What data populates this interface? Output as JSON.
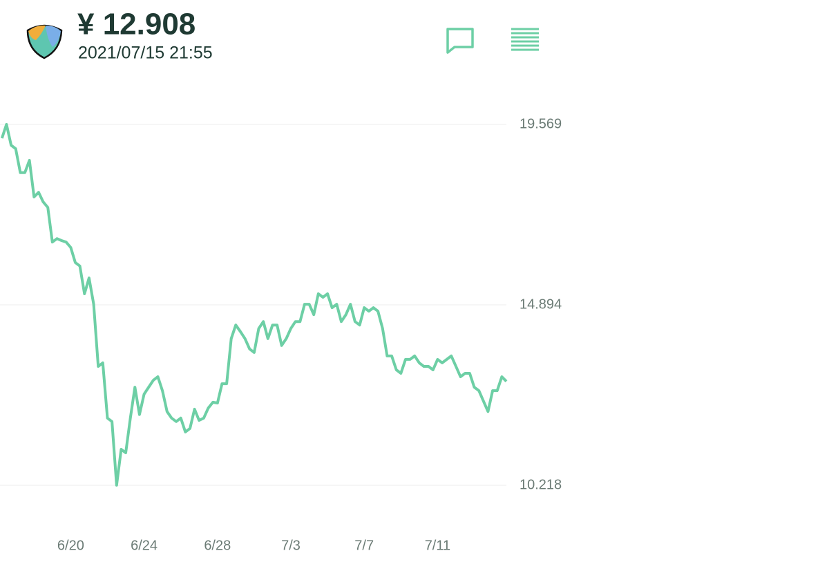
{
  "header": {
    "price": "¥ 12.908",
    "datetime": "2021/07/15 21:55"
  },
  "chart_data": {
    "type": "line",
    "color": "#6dcfa5",
    "grid": true,
    "ylim": [
      10.218,
      19.569
    ],
    "yticks": [
      10.218,
      14.894,
      19.569
    ],
    "categories": [
      null,
      null,
      null,
      null,
      null,
      null,
      null,
      null,
      null,
      null,
      null,
      null,
      null,
      null,
      null,
      "6/20",
      null,
      null,
      null,
      null,
      null,
      null,
      null,
      null,
      null,
      null,
      null,
      null,
      null,
      null,
      null,
      "6/24",
      null,
      null,
      null,
      null,
      null,
      null,
      null,
      null,
      null,
      null,
      null,
      null,
      null,
      null,
      null,
      "6/28",
      null,
      null,
      null,
      null,
      null,
      null,
      null,
      null,
      null,
      null,
      null,
      null,
      null,
      null,
      null,
      "7/3",
      null,
      null,
      null,
      null,
      null,
      null,
      null,
      null,
      null,
      null,
      null,
      null,
      null,
      null,
      null,
      "7/7",
      null,
      null,
      null,
      null,
      null,
      null,
      null,
      null,
      null,
      null,
      null,
      null,
      null,
      null,
      null,
      "7/11",
      null,
      null,
      null,
      null,
      null,
      null,
      null,
      null,
      null,
      null,
      null,
      null,
      null,
      null,
      null
    ],
    "values": [
      19.21,
      19.57,
      19.03,
      18.94,
      18.32,
      18.32,
      18.64,
      17.69,
      17.81,
      17.56,
      17.42,
      16.52,
      16.61,
      16.56,
      16.52,
      16.38,
      15.99,
      15.9,
      15.18,
      15.59,
      14.91,
      13.3,
      13.39,
      11.96,
      11.87,
      10.22,
      11.15,
      11.06,
      11.96,
      12.76,
      12.05,
      12.58,
      12.76,
      12.94,
      13.03,
      12.67,
      12.13,
      11.96,
      11.87,
      11.96,
      11.6,
      11.69,
      12.19,
      11.9,
      11.96,
      12.22,
      12.37,
      12.35,
      12.85,
      12.85,
      14.02,
      14.37,
      14.2,
      14.02,
      13.75,
      13.66,
      14.28,
      14.46,
      14.02,
      14.37,
      14.37,
      13.84,
      14.02,
      14.28,
      14.46,
      14.46,
      14.91,
      14.91,
      14.64,
      15.18,
      15.09,
      15.18,
      14.82,
      14.91,
      14.46,
      14.64,
      14.91,
      14.46,
      14.37,
      14.82,
      14.73,
      14.82,
      14.73,
      14.28,
      13.57,
      13.57,
      13.21,
      13.12,
      13.48,
      13.48,
      13.57,
      13.39,
      13.3,
      13.3,
      13.21,
      13.48,
      13.39,
      13.48,
      13.57,
      13.3,
      13.03,
      13.12,
      13.12,
      12.76,
      12.67,
      12.4,
      12.13,
      12.67,
      12.67,
      13.03,
      12.91
    ]
  }
}
